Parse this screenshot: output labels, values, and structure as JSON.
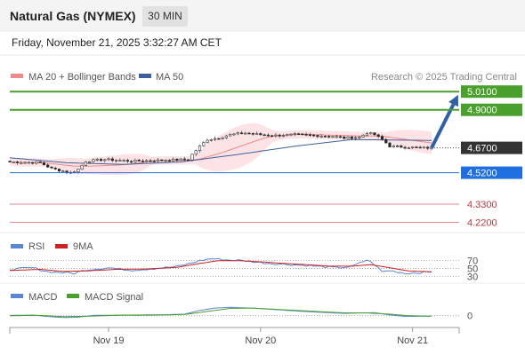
{
  "header": {
    "title": "Natural Gas (NYMEX)",
    "timeframe": "30 MIN",
    "datetime": "Friday, November 21, 2025 3:32:27 AM CET"
  },
  "colors": {
    "ma20": "#f08a8a",
    "bollinger_fill": "#fde3e6",
    "ma50": "#3f5f9a",
    "resistance": "#4aa02c",
    "pivot": "#333333",
    "support1": "#1f6fe0",
    "support_weak": "#e88a92",
    "arrow": "#2f5fa4",
    "rsi": "#5b86d6",
    "rsi_ma": "#cc2222",
    "macd": "#5b86d6",
    "macd_signal": "#4aa02c"
  },
  "chart_data": [
    {
      "type": "candlestick",
      "legend": [
        {
          "label": "MA 20 + Bollinger Bands",
          "color": "#f08a8a"
        },
        {
          "label": "MA 50",
          "color": "#3f5f9a"
        }
      ],
      "credit": "Research © 2025 Trading Central",
      "ylim": [
        4.18,
        5.07
      ],
      "x_ticks": [
        {
          "label": "Nov 19",
          "index": 26
        },
        {
          "label": "Nov 20",
          "index": 66
        },
        {
          "label": "Nov 21",
          "index": 106
        }
      ],
      "n_bars": 112,
      "levels": [
        {
          "label": "5.0100",
          "value": 5.01,
          "kind": "resistance",
          "style": "box"
        },
        {
          "label": "4.9000",
          "value": 4.9,
          "kind": "resistance",
          "style": "box"
        },
        {
          "label": "4.6700",
          "value": 4.67,
          "kind": "pivot",
          "style": "box"
        },
        {
          "label": "4.5200",
          "value": 4.52,
          "kind": "support1",
          "style": "box"
        },
        {
          "label": "4.3300",
          "value": 4.33,
          "kind": "support_weak",
          "style": "text"
        },
        {
          "label": "4.2200",
          "value": 4.22,
          "kind": "support_weak",
          "style": "text"
        }
      ],
      "price_path": [
        [
          0,
          4.585
        ],
        [
          8,
          4.58
        ],
        [
          11,
          4.545
        ],
        [
          13,
          4.535
        ],
        [
          16,
          4.52
        ],
        [
          18,
          4.54
        ],
        [
          20,
          4.59
        ],
        [
          25,
          4.6
        ],
        [
          32,
          4.59
        ],
        [
          40,
          4.595
        ],
        [
          47,
          4.6
        ],
        [
          48,
          4.63
        ],
        [
          50,
          4.68
        ],
        [
          52,
          4.72
        ],
        [
          55,
          4.73
        ],
        [
          58,
          4.75
        ],
        [
          62,
          4.76
        ],
        [
          66,
          4.75
        ],
        [
          70,
          4.745
        ],
        [
          75,
          4.75
        ],
        [
          80,
          4.745
        ],
        [
          85,
          4.74
        ],
        [
          88,
          4.73
        ],
        [
          92,
          4.735
        ],
        [
          94,
          4.76
        ],
        [
          96,
          4.75
        ],
        [
          98,
          4.72
        ],
        [
          100,
          4.68
        ],
        [
          104,
          4.675
        ],
        [
          108,
          4.67
        ],
        [
          111,
          4.67
        ]
      ],
      "ma50_path": [
        [
          0,
          4.61
        ],
        [
          15,
          4.58
        ],
        [
          30,
          4.57
        ],
        [
          45,
          4.585
        ],
        [
          60,
          4.63
        ],
        [
          75,
          4.68
        ],
        [
          90,
          4.72
        ],
        [
          111,
          4.715
        ]
      ],
      "forecast_arrow": {
        "from": [
          111,
          4.67
        ],
        "to": [
          118,
          4.99
        ]
      }
    },
    {
      "type": "line",
      "legend": [
        {
          "label": "RSI",
          "color": "#5b86d6"
        },
        {
          "label": "9MA",
          "color": "#cc2222"
        }
      ],
      "ylim": [
        20,
        85
      ],
      "y_ticks": [
        {
          "label": "70",
          "value": 70
        },
        {
          "label": "50",
          "value": 50
        },
        {
          "label": "30",
          "value": 30
        }
      ],
      "series": [
        {
          "key": "rsi",
          "path": [
            [
              0,
              48
            ],
            [
              6,
              52
            ],
            [
              10,
              42
            ],
            [
              14,
              40
            ],
            [
              17,
              38
            ],
            [
              20,
              47
            ],
            [
              26,
              52
            ],
            [
              32,
              46
            ],
            [
              38,
              50
            ],
            [
              44,
              55
            ],
            [
              47,
              62
            ],
            [
              50,
              70
            ],
            [
              53,
              75
            ],
            [
              57,
              72
            ],
            [
              62,
              70
            ],
            [
              66,
              65
            ],
            [
              70,
              62
            ],
            [
              74,
              60
            ],
            [
              78,
              58
            ],
            [
              82,
              55
            ],
            [
              86,
              52
            ],
            [
              90,
              55
            ],
            [
              94,
              72
            ],
            [
              96,
              60
            ],
            [
              98,
              42
            ],
            [
              100,
              45
            ],
            [
              104,
              38
            ],
            [
              108,
              40
            ],
            [
              111,
              42
            ]
          ]
        },
        {
          "key": "rsi_ma",
          "path": [
            [
              0,
              45
            ],
            [
              8,
              48
            ],
            [
              14,
              43
            ],
            [
              20,
              44
            ],
            [
              28,
              48
            ],
            [
              36,
              49
            ],
            [
              44,
              53
            ],
            [
              50,
              63
            ],
            [
              55,
              70
            ],
            [
              60,
              70
            ],
            [
              66,
              67
            ],
            [
              72,
              63
            ],
            [
              78,
              60
            ],
            [
              84,
              56
            ],
            [
              90,
              56
            ],
            [
              95,
              60
            ],
            [
              100,
              52
            ],
            [
              105,
              44
            ],
            [
              111,
              42
            ]
          ]
        }
      ]
    },
    {
      "type": "line",
      "legend": [
        {
          "label": "MACD",
          "color": "#5b86d6"
        },
        {
          "label": "MACD Signal",
          "color": "#4aa02c"
        }
      ],
      "ylim": [
        -0.06,
        0.08
      ],
      "y_ticks": [
        {
          "label": "0",
          "value": 0
        }
      ],
      "series": [
        {
          "key": "macd",
          "path": [
            [
              0,
              0.002
            ],
            [
              6,
              0.004
            ],
            [
              10,
              -0.005
            ],
            [
              14,
              -0.012
            ],
            [
              18,
              -0.01
            ],
            [
              22,
              0.002
            ],
            [
              30,
              0.004
            ],
            [
              40,
              0.006
            ],
            [
              46,
              0.01
            ],
            [
              50,
              0.035
            ],
            [
              54,
              0.05
            ],
            [
              58,
              0.055
            ],
            [
              64,
              0.05
            ],
            [
              70,
              0.04
            ],
            [
              76,
              0.03
            ],
            [
              82,
              0.022
            ],
            [
              88,
              0.015
            ],
            [
              92,
              0.018
            ],
            [
              96,
              0.02
            ],
            [
              100,
              0.005
            ],
            [
              104,
              -0.005
            ],
            [
              108,
              -0.004
            ],
            [
              111,
              -0.003
            ]
          ]
        },
        {
          "key": "macd_signal",
          "path": [
            [
              0,
              0
            ],
            [
              8,
              0.002
            ],
            [
              14,
              -0.006
            ],
            [
              20,
              -0.004
            ],
            [
              28,
              0.002
            ],
            [
              38,
              0.004
            ],
            [
              46,
              0.008
            ],
            [
              52,
              0.028
            ],
            [
              58,
              0.048
            ],
            [
              64,
              0.05
            ],
            [
              70,
              0.042
            ],
            [
              76,
              0.034
            ],
            [
              82,
              0.026
            ],
            [
              88,
              0.019
            ],
            [
              94,
              0.018
            ],
            [
              100,
              0.01
            ],
            [
              105,
              0.0
            ],
            [
              111,
              -0.003
            ]
          ]
        }
      ]
    }
  ]
}
